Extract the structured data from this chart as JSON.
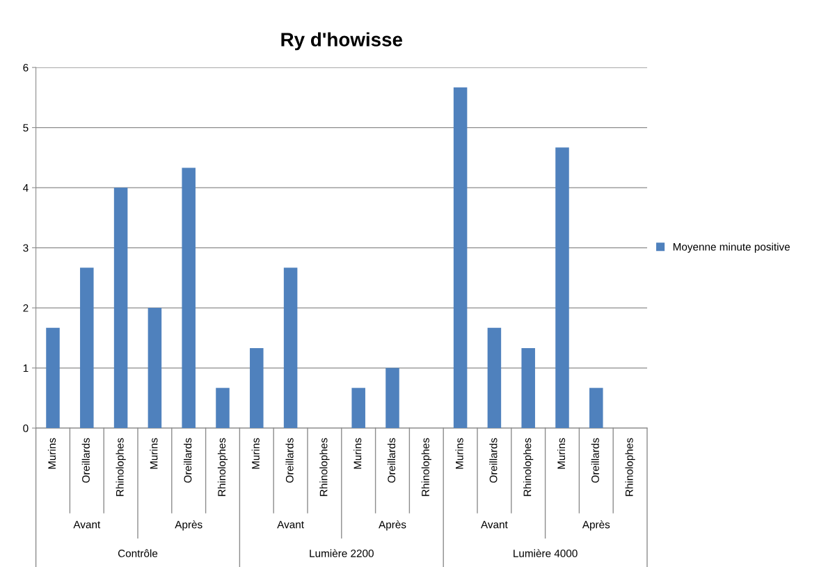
{
  "chart_data": {
    "type": "bar",
    "title": "Ry d'howisse",
    "categories": [
      "Murins",
      "Oreillards",
      "Rhinolophes",
      "Murins",
      "Oreillards",
      "Rhinolophes",
      "Murins",
      "Oreillards",
      "Rhinolophes",
      "Murins",
      "Oreillards",
      "Rhinolophes",
      "Murins",
      "Oreillards",
      "Rhinolophes",
      "Murins",
      "Oreillards",
      "Rhinolophes"
    ],
    "series": [
      {
        "name": "Moyenne minute positive",
        "color": "#4f81bd",
        "values": [
          1.67,
          2.67,
          4,
          2,
          4.33,
          0.67,
          1.33,
          2.67,
          0,
          0.67,
          1,
          0,
          5.67,
          1.67,
          1.33,
          4.67,
          0.67,
          0
        ]
      }
    ],
    "annotations": [
      "Avant",
      "Après",
      "Avant",
      "Après",
      "Avant",
      "Après",
      "Contrôle",
      "Lumière 2200",
      "Lumière 4000"
    ],
    "ylim": [
      0,
      6
    ],
    "yticks": [
      0,
      1,
      2,
      3,
      4,
      5,
      6
    ],
    "grid": "y",
    "legend": "right"
  }
}
